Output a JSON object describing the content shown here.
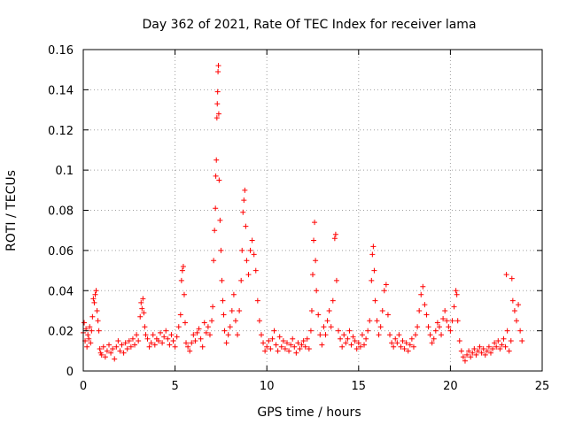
{
  "chart_data": {
    "type": "scatter",
    "title": "Day 362 of 2021, Rate Of TEC Index for receiver lama",
    "xlabel": "GPS time / hours",
    "ylabel": "ROTI / TECUs",
    "xlim": [
      0,
      25
    ],
    "ylim": [
      0,
      0.16
    ],
    "x_ticks": [
      0,
      5,
      10,
      15,
      20,
      25
    ],
    "x_tick_labels": [
      "0",
      "5",
      "10",
      "15",
      "20",
      "25"
    ],
    "y_ticks": [
      0,
      0.02,
      0.04,
      0.06,
      0.08,
      0.1,
      0.12,
      0.14,
      0.16
    ],
    "y_tick_labels": [
      "0",
      "0.02",
      "0.04",
      "0.06",
      "0.08",
      "0.1",
      "0.12",
      "0.14",
      "0.16"
    ],
    "grid": true,
    "marker": "+",
    "marker_color": "#ff0000",
    "series": [
      {
        "name": "ROTI",
        "points": [
          [
            0.0,
            0.019
          ],
          [
            0.05,
            0.024
          ],
          [
            0.1,
            0.015
          ],
          [
            0.15,
            0.021
          ],
          [
            0.2,
            0.012
          ],
          [
            0.25,
            0.018
          ],
          [
            0.3,
            0.016
          ],
          [
            0.35,
            0.022
          ],
          [
            0.4,
            0.014
          ],
          [
            0.45,
            0.02
          ],
          [
            0.5,
            0.027
          ],
          [
            0.55,
            0.036
          ],
          [
            0.6,
            0.034
          ],
          [
            0.65,
            0.038
          ],
          [
            0.7,
            0.04
          ],
          [
            0.75,
            0.03
          ],
          [
            0.8,
            0.025
          ],
          [
            0.85,
            0.02
          ],
          [
            0.9,
            0.011
          ],
          [
            0.95,
            0.009
          ],
          [
            1.0,
            0.008
          ],
          [
            1.1,
            0.012
          ],
          [
            1.2,
            0.007
          ],
          [
            1.3,
            0.01
          ],
          [
            1.4,
            0.013
          ],
          [
            1.5,
            0.009
          ],
          [
            1.6,
            0.011
          ],
          [
            1.7,
            0.006
          ],
          [
            1.8,
            0.012
          ],
          [
            1.9,
            0.015
          ],
          [
            2.0,
            0.01
          ],
          [
            2.1,
            0.013
          ],
          [
            2.2,
            0.009
          ],
          [
            2.3,
            0.014
          ],
          [
            2.4,
            0.011
          ],
          [
            2.5,
            0.015
          ],
          [
            2.6,
            0.012
          ],
          [
            2.7,
            0.016
          ],
          [
            2.8,
            0.013
          ],
          [
            2.9,
            0.018
          ],
          [
            3.0,
            0.015
          ],
          [
            3.1,
            0.027
          ],
          [
            3.15,
            0.034
          ],
          [
            3.2,
            0.031
          ],
          [
            3.25,
            0.036
          ],
          [
            3.3,
            0.029
          ],
          [
            3.35,
            0.022
          ],
          [
            3.4,
            0.018
          ],
          [
            3.5,
            0.016
          ],
          [
            3.6,
            0.012
          ],
          [
            3.7,
            0.014
          ],
          [
            3.8,
            0.018
          ],
          [
            3.9,
            0.013
          ],
          [
            4.0,
            0.016
          ],
          [
            4.1,
            0.015
          ],
          [
            4.2,
            0.019
          ],
          [
            4.3,
            0.014
          ],
          [
            4.4,
            0.017
          ],
          [
            4.5,
            0.02
          ],
          [
            4.6,
            0.016
          ],
          [
            4.7,
            0.013
          ],
          [
            4.8,
            0.018
          ],
          [
            4.9,
            0.015
          ],
          [
            5.0,
            0.012
          ],
          [
            5.1,
            0.017
          ],
          [
            5.2,
            0.022
          ],
          [
            5.3,
            0.028
          ],
          [
            5.35,
            0.045
          ],
          [
            5.4,
            0.05
          ],
          [
            5.45,
            0.052
          ],
          [
            5.5,
            0.038
          ],
          [
            5.55,
            0.024
          ],
          [
            5.6,
            0.014
          ],
          [
            5.7,
            0.012
          ],
          [
            5.8,
            0.01
          ],
          [
            5.9,
            0.014
          ],
          [
            6.0,
            0.018
          ],
          [
            6.1,
            0.015
          ],
          [
            6.2,
            0.019
          ],
          [
            6.3,
            0.021
          ],
          [
            6.4,
            0.016
          ],
          [
            6.5,
            0.012
          ],
          [
            6.6,
            0.024
          ],
          [
            6.7,
            0.019
          ],
          [
            6.8,
            0.022
          ],
          [
            6.9,
            0.018
          ],
          [
            7.0,
            0.025
          ],
          [
            7.05,
            0.032
          ],
          [
            7.1,
            0.055
          ],
          [
            7.15,
            0.07
          ],
          [
            7.2,
            0.081
          ],
          [
            7.22,
            0.097
          ],
          [
            7.25,
            0.105
          ],
          [
            7.28,
            0.126
          ],
          [
            7.3,
            0.133
          ],
          [
            7.32,
            0.139
          ],
          [
            7.34,
            0.149
          ],
          [
            7.36,
            0.152
          ],
          [
            7.38,
            0.128
          ],
          [
            7.4,
            0.095
          ],
          [
            7.45,
            0.075
          ],
          [
            7.5,
            0.06
          ],
          [
            7.55,
            0.045
          ],
          [
            7.6,
            0.035
          ],
          [
            7.65,
            0.028
          ],
          [
            7.7,
            0.02
          ],
          [
            7.8,
            0.014
          ],
          [
            7.9,
            0.018
          ],
          [
            8.0,
            0.022
          ],
          [
            8.1,
            0.03
          ],
          [
            8.2,
            0.038
          ],
          [
            8.3,
            0.025
          ],
          [
            8.4,
            0.018
          ],
          [
            8.5,
            0.03
          ],
          [
            8.6,
            0.045
          ],
          [
            8.65,
            0.06
          ],
          [
            8.7,
            0.079
          ],
          [
            8.75,
            0.085
          ],
          [
            8.8,
            0.09
          ],
          [
            8.85,
            0.072
          ],
          [
            8.9,
            0.055
          ],
          [
            9.0,
            0.048
          ],
          [
            9.1,
            0.06
          ],
          [
            9.2,
            0.065
          ],
          [
            9.3,
            0.058
          ],
          [
            9.4,
            0.05
          ],
          [
            9.5,
            0.035
          ],
          [
            9.6,
            0.025
          ],
          [
            9.7,
            0.018
          ],
          [
            9.8,
            0.014
          ],
          [
            9.9,
            0.01
          ],
          [
            10.0,
            0.012
          ],
          [
            10.1,
            0.015
          ],
          [
            10.2,
            0.011
          ],
          [
            10.3,
            0.016
          ],
          [
            10.4,
            0.02
          ],
          [
            10.5,
            0.013
          ],
          [
            10.6,
            0.01
          ],
          [
            10.7,
            0.017
          ],
          [
            10.8,
            0.012
          ],
          [
            10.9,
            0.015
          ],
          [
            11.0,
            0.011
          ],
          [
            11.1,
            0.014
          ],
          [
            11.2,
            0.01
          ],
          [
            11.3,
            0.013
          ],
          [
            11.4,
            0.016
          ],
          [
            11.5,
            0.012
          ],
          [
            11.6,
            0.009
          ],
          [
            11.7,
            0.014
          ],
          [
            11.8,
            0.011
          ],
          [
            11.9,
            0.013
          ],
          [
            12.0,
            0.015
          ],
          [
            12.1,
            0.012
          ],
          [
            12.2,
            0.016
          ],
          [
            12.3,
            0.011
          ],
          [
            12.4,
            0.02
          ],
          [
            12.45,
            0.03
          ],
          [
            12.5,
            0.048
          ],
          [
            12.55,
            0.065
          ],
          [
            12.6,
            0.074
          ],
          [
            12.65,
            0.055
          ],
          [
            12.7,
            0.04
          ],
          [
            12.8,
            0.028
          ],
          [
            12.9,
            0.018
          ],
          [
            13.0,
            0.013
          ],
          [
            13.1,
            0.022
          ],
          [
            13.2,
            0.018
          ],
          [
            13.3,
            0.025
          ],
          [
            13.4,
            0.03
          ],
          [
            13.5,
            0.022
          ],
          [
            13.6,
            0.035
          ],
          [
            13.7,
            0.066
          ],
          [
            13.75,
            0.068
          ],
          [
            13.8,
            0.045
          ],
          [
            13.9,
            0.02
          ],
          [
            14.0,
            0.016
          ],
          [
            14.1,
            0.012
          ],
          [
            14.2,
            0.018
          ],
          [
            14.3,
            0.014
          ],
          [
            14.4,
            0.016
          ],
          [
            14.5,
            0.02
          ],
          [
            14.6,
            0.013
          ],
          [
            14.7,
            0.017
          ],
          [
            14.8,
            0.015
          ],
          [
            14.9,
            0.011
          ],
          [
            15.0,
            0.014
          ],
          [
            15.1,
            0.012
          ],
          [
            15.2,
            0.018
          ],
          [
            15.3,
            0.013
          ],
          [
            15.4,
            0.016
          ],
          [
            15.5,
            0.02
          ],
          [
            15.6,
            0.025
          ],
          [
            15.7,
            0.045
          ],
          [
            15.75,
            0.058
          ],
          [
            15.8,
            0.062
          ],
          [
            15.85,
            0.05
          ],
          [
            15.9,
            0.035
          ],
          [
            16.0,
            0.025
          ],
          [
            16.1,
            0.018
          ],
          [
            16.2,
            0.022
          ],
          [
            16.3,
            0.03
          ],
          [
            16.4,
            0.04
          ],
          [
            16.5,
            0.043
          ],
          [
            16.6,
            0.028
          ],
          [
            16.7,
            0.018
          ],
          [
            16.8,
            0.014
          ],
          [
            16.9,
            0.012
          ],
          [
            17.0,
            0.016
          ],
          [
            17.1,
            0.014
          ],
          [
            17.2,
            0.018
          ],
          [
            17.3,
            0.012
          ],
          [
            17.4,
            0.015
          ],
          [
            17.5,
            0.011
          ],
          [
            17.6,
            0.014
          ],
          [
            17.7,
            0.01
          ],
          [
            17.8,
            0.013
          ],
          [
            17.9,
            0.016
          ],
          [
            18.0,
            0.012
          ],
          [
            18.1,
            0.018
          ],
          [
            18.2,
            0.022
          ],
          [
            18.3,
            0.03
          ],
          [
            18.4,
            0.038
          ],
          [
            18.5,
            0.042
          ],
          [
            18.6,
            0.033
          ],
          [
            18.7,
            0.028
          ],
          [
            18.8,
            0.022
          ],
          [
            18.9,
            0.018
          ],
          [
            19.0,
            0.014
          ],
          [
            19.1,
            0.016
          ],
          [
            19.2,
            0.02
          ],
          [
            19.3,
            0.024
          ],
          [
            19.4,
            0.022
          ],
          [
            19.5,
            0.018
          ],
          [
            19.6,
            0.026
          ],
          [
            19.7,
            0.03
          ],
          [
            19.8,
            0.025
          ],
          [
            19.9,
            0.022
          ],
          [
            20.0,
            0.02
          ],
          [
            20.1,
            0.025
          ],
          [
            20.2,
            0.032
          ],
          [
            20.3,
            0.04
          ],
          [
            20.35,
            0.038
          ],
          [
            20.4,
            0.025
          ],
          [
            20.5,
            0.015
          ],
          [
            20.6,
            0.01
          ],
          [
            20.7,
            0.007
          ],
          [
            20.8,
            0.005
          ],
          [
            20.9,
            0.008
          ],
          [
            21.0,
            0.01
          ],
          [
            21.1,
            0.007
          ],
          [
            21.2,
            0.009
          ],
          [
            21.3,
            0.011
          ],
          [
            21.4,
            0.008
          ],
          [
            21.5,
            0.01
          ],
          [
            21.6,
            0.012
          ],
          [
            21.7,
            0.009
          ],
          [
            21.8,
            0.011
          ],
          [
            21.9,
            0.008
          ],
          [
            22.0,
            0.01
          ],
          [
            22.1,
            0.012
          ],
          [
            22.2,
            0.009
          ],
          [
            22.3,
            0.011
          ],
          [
            22.4,
            0.014
          ],
          [
            22.5,
            0.012
          ],
          [
            22.6,
            0.015
          ],
          [
            22.7,
            0.011
          ],
          [
            22.8,
            0.013
          ],
          [
            22.9,
            0.016
          ],
          [
            23.0,
            0.012
          ],
          [
            23.05,
            0.048
          ],
          [
            23.1,
            0.02
          ],
          [
            23.2,
            0.01
          ],
          [
            23.3,
            0.015
          ],
          [
            23.35,
            0.046
          ],
          [
            23.4,
            0.035
          ],
          [
            23.5,
            0.03
          ],
          [
            23.6,
            0.025
          ],
          [
            23.7,
            0.033
          ],
          [
            23.8,
            0.02
          ],
          [
            23.9,
            0.015
          ]
        ]
      }
    ]
  }
}
